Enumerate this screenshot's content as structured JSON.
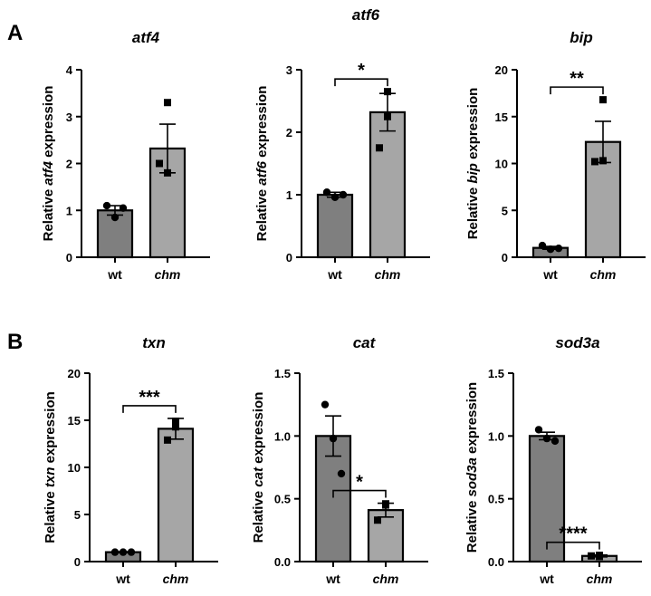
{
  "panel_labels": [
    "A",
    "B"
  ],
  "colors": {
    "wt": "#7f7f7f",
    "chm": "#a6a6a6",
    "outline": "#000000"
  },
  "chart_data": [
    {
      "type": "bar",
      "panel": "A",
      "title": "atf4",
      "ylabel_prefix": "Relative ",
      "ylabel_gene": "atf4",
      "ylabel_suffix": " expression",
      "categories": [
        "wt",
        "chm"
      ],
      "category_italic": [
        false,
        true
      ],
      "values": [
        1.0,
        2.32
      ],
      "errors": [
        0.1,
        0.52
      ],
      "points": [
        [
          1.1,
          0.85,
          1.05
        ],
        [
          3.3,
          1.8,
          2.0
        ]
      ],
      "ylim": [
        0,
        4
      ],
      "yticks": [
        0,
        1,
        2,
        3,
        4
      ],
      "tick_labels": [
        "0",
        "1",
        "2",
        "3",
        "4"
      ],
      "significance": ""
    },
    {
      "type": "bar",
      "panel": "A",
      "title": "atf6",
      "ylabel_prefix": "Relative ",
      "ylabel_gene": "atf6",
      "ylabel_suffix": " expression",
      "categories": [
        "wt",
        "chm"
      ],
      "category_italic": [
        false,
        true
      ],
      "values": [
        1.0,
        2.32
      ],
      "errors": [
        0.04,
        0.3
      ],
      "points": [
        [
          1.04,
          0.96,
          1.0
        ],
        [
          2.65,
          2.25,
          1.75
        ]
      ],
      "ylim": [
        0,
        3
      ],
      "yticks": [
        0,
        1,
        2,
        3
      ],
      "tick_labels": [
        "0",
        "1",
        "2",
        "3"
      ],
      "significance": "*"
    },
    {
      "type": "bar",
      "panel": "A",
      "title": "bip",
      "ylabel_prefix": "Relative ",
      "ylabel_gene": "bip",
      "ylabel_suffix": " expression",
      "categories": [
        "wt",
        "chm"
      ],
      "category_italic": [
        false,
        true
      ],
      "values": [
        1.0,
        12.3
      ],
      "errors": [
        0.15,
        2.2
      ],
      "points": [
        [
          1.25,
          0.85,
          0.95
        ],
        [
          16.8,
          10.3,
          10.2
        ]
      ],
      "ylim": [
        0,
        20
      ],
      "yticks": [
        0,
        5,
        10,
        15,
        20
      ],
      "tick_labels": [
        "0",
        "5",
        "10",
        "15",
        "20"
      ],
      "significance": "**"
    },
    {
      "type": "bar",
      "panel": "B",
      "title": "txn",
      "ylabel_prefix": "Relative ",
      "ylabel_gene": "txn",
      "ylabel_suffix": " expression",
      "categories": [
        "wt",
        "chm"
      ],
      "category_italic": [
        false,
        true
      ],
      "values": [
        1.0,
        14.1
      ],
      "errors": [
        0.05,
        1.1
      ],
      "points": [
        [
          1.0,
          1.0,
          1.0
        ],
        [
          14.9,
          14.3,
          12.9
        ]
      ],
      "ylim": [
        0,
        20
      ],
      "yticks": [
        0,
        5,
        10,
        15,
        20
      ],
      "tick_labels": [
        "0",
        "5",
        "10",
        "15",
        "20"
      ],
      "significance": "***"
    },
    {
      "type": "bar",
      "panel": "B",
      "title": "cat",
      "ylabel_prefix": "Relative ",
      "ylabel_gene": "cat",
      "ylabel_suffix": " expression",
      "categories": [
        "wt",
        "chm"
      ],
      "category_italic": [
        false,
        true
      ],
      "values": [
        1.0,
        0.41
      ],
      "errors": [
        0.16,
        0.055
      ],
      "points": [
        [
          1.25,
          0.98,
          0.7
        ],
        [
          0.46,
          0.45,
          0.33
        ]
      ],
      "ylim": [
        0,
        1.5
      ],
      "yticks": [
        0,
        0.5,
        1.0,
        1.5
      ],
      "tick_labels": [
        "0.0",
        "0.5",
        "1.0",
        "1.5"
      ],
      "significance": "*"
    },
    {
      "type": "bar",
      "panel": "B",
      "title": "sod3a",
      "ylabel_prefix": "Relative ",
      "ylabel_gene": "sod3a",
      "ylabel_suffix": " expression",
      "categories": [
        "wt",
        "chm"
      ],
      "category_italic": [
        false,
        true
      ],
      "values": [
        1.0,
        0.045
      ],
      "errors": [
        0.03,
        0.008
      ],
      "points": [
        [
          1.05,
          0.98,
          0.96
        ],
        [
          0.04,
          0.05,
          0.045
        ]
      ],
      "ylim": [
        0,
        1.5
      ],
      "yticks": [
        0,
        0.5,
        1.0,
        1.5
      ],
      "tick_labels": [
        "0.0",
        "0.5",
        "1.0",
        "1.5"
      ],
      "significance": "****"
    }
  ]
}
